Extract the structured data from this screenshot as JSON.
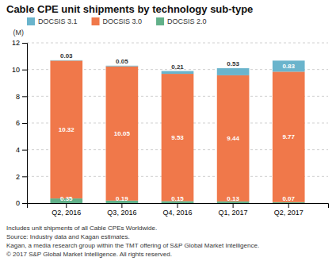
{
  "chart_data": {
    "type": "bar",
    "title": "Cable CPE unit shipments by technology sub-type",
    "ylabel": "(M)",
    "categories": [
      "Q2, 2016",
      "Q3, 2016",
      "Q4, 2016",
      "Q1, 2017",
      "Q2, 2017"
    ],
    "series": [
      {
        "name": "DOCSIS 2.0",
        "color": "#62b089",
        "values": [
          0.35,
          0.19,
          0.15,
          0.13,
          0.07
        ]
      },
      {
        "name": "DOCSIS 3.0",
        "color": "#f0784a",
        "values": [
          10.32,
          10.05,
          9.53,
          9.44,
          9.77
        ]
      },
      {
        "name": "DOCSIS 3.1",
        "color": "#6ab4cc",
        "values": [
          0.03,
          0.05,
          0.21,
          0.53,
          0.83
        ]
      }
    ],
    "stacked": true,
    "data_labels": true,
    "ylim": [
      0,
      12
    ],
    "yticks": [
      0,
      2,
      4,
      6,
      8,
      10,
      12
    ],
    "grid": true,
    "legend": "top",
    "annotations": [
      "Includes unit shipments of all Cable CPEs Worldwide.",
      "Source: Industry data and Kagan estimates.",
      "Kagan, a media research group within the TMT offering of S&P Global Market Intelligence.",
      "© 2017 S&P Global Market Intelligence. All rights reserved."
    ]
  }
}
